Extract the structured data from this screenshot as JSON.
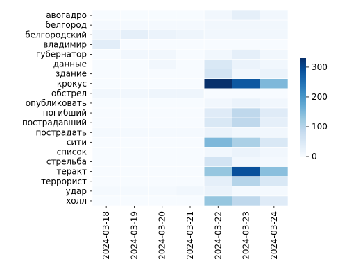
{
  "chart_data": {
    "type": "heatmap",
    "title": "",
    "xlabel": "",
    "ylabel": "",
    "x": [
      "2024-03-18",
      "2024-03-19",
      "2024-03-20",
      "2024-03-21",
      "2024-03-22",
      "2024-03-23",
      "2024-03-24"
    ],
    "y": [
      "авогадро",
      "белгород",
      "белгородский",
      "владимир",
      "губернатор",
      "данные",
      "здание",
      "крокус",
      "обстрел",
      "опубликовать",
      "погибший",
      "пострадавший",
      "пострадать",
      "сити",
      "список",
      "стрельба",
      "теракт",
      "террорист",
      "удар",
      "холл"
    ],
    "values": [
      [
        0,
        0,
        0,
        0,
        10,
        30,
        10
      ],
      [
        5,
        5,
        5,
        5,
        10,
        10,
        10
      ],
      [
        15,
        30,
        20,
        15,
        10,
        10,
        10
      ],
      [
        35,
        0,
        0,
        0,
        0,
        0,
        0
      ],
      [
        0,
        10,
        10,
        0,
        10,
        30,
        10
      ],
      [
        0,
        0,
        10,
        0,
        50,
        20,
        10
      ],
      [
        0,
        0,
        0,
        0,
        60,
        10,
        20
      ],
      [
        0,
        0,
        0,
        0,
        330,
        280,
        150
      ],
      [
        10,
        10,
        15,
        15,
        0,
        0,
        0
      ],
      [
        0,
        0,
        0,
        0,
        10,
        20,
        10
      ],
      [
        0,
        0,
        0,
        0,
        40,
        90,
        40
      ],
      [
        0,
        0,
        0,
        0,
        50,
        90,
        30
      ],
      [
        5,
        5,
        5,
        5,
        20,
        10,
        10
      ],
      [
        0,
        0,
        0,
        0,
        150,
        110,
        50
      ],
      [
        0,
        0,
        0,
        0,
        10,
        20,
        10
      ],
      [
        0,
        0,
        0,
        0,
        60,
        10,
        5
      ],
      [
        0,
        0,
        0,
        0,
        130,
        290,
        140
      ],
      [
        0,
        0,
        0,
        0,
        30,
        100,
        50
      ],
      [
        5,
        5,
        5,
        10,
        20,
        5,
        5
      ],
      [
        0,
        0,
        0,
        0,
        130,
        90,
        40
      ]
    ],
    "colorbar": {
      "min": 0,
      "max": 330,
      "ticks": [
        0,
        100,
        200,
        300
      ],
      "colormap": "Blues"
    },
    "grid": false,
    "cell_separator_color": "#ffffff"
  }
}
